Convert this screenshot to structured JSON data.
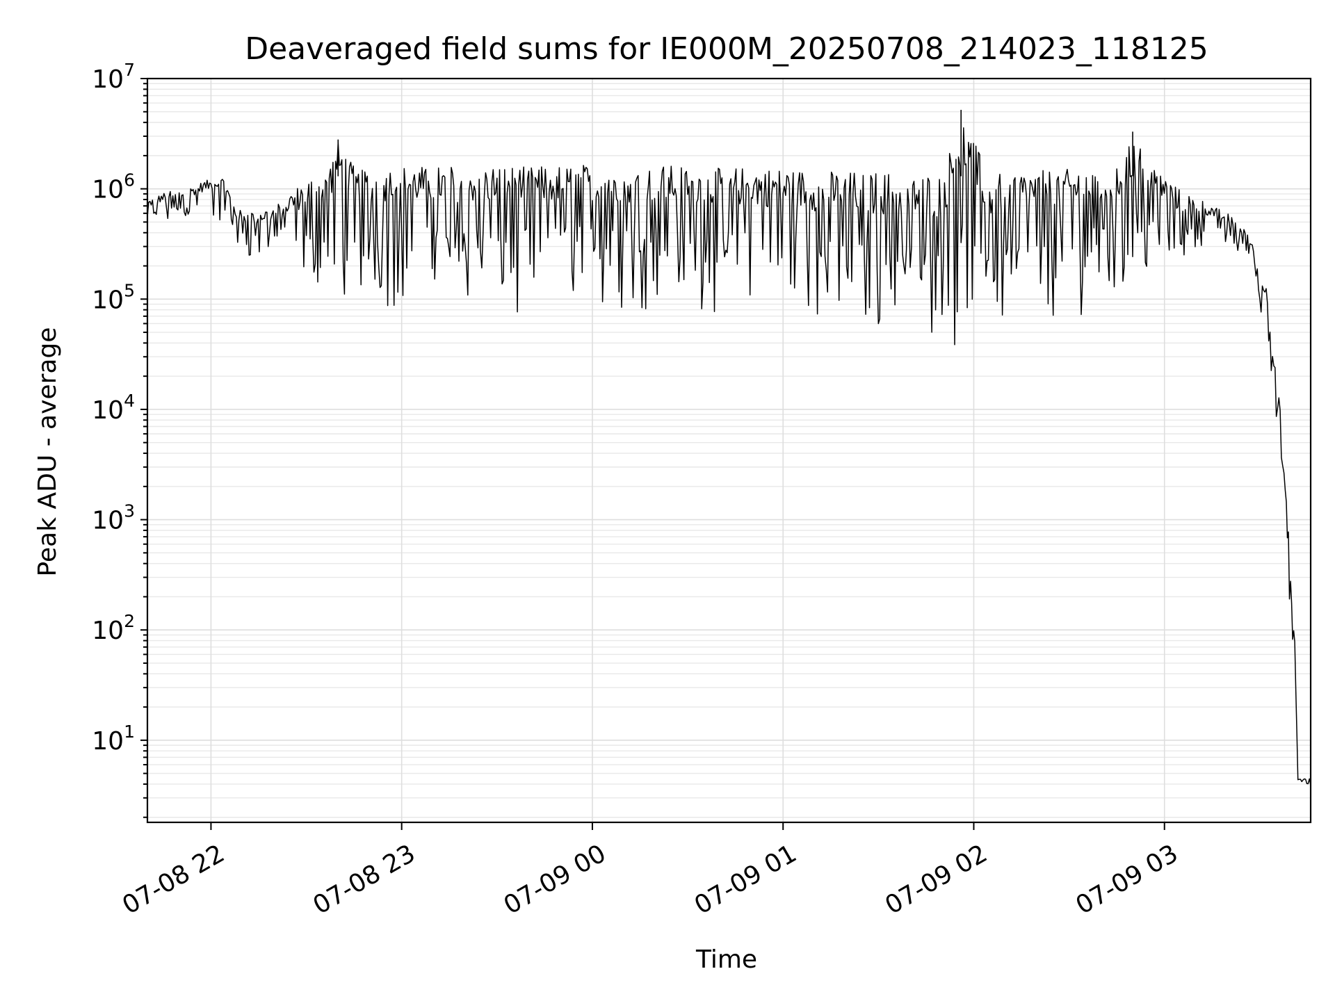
{
  "chart_data": {
    "type": "line",
    "title": "Deaveraged field sums for IE000M_20250708_214023_118125",
    "xlabel": "Time",
    "ylabel": "Peak ADU - average",
    "yscale": "log",
    "ylim": [
      1.8,
      10000000
    ],
    "xlim": [
      "07-08 21:40",
      "07-09 03:46"
    ],
    "grid": true,
    "x_ticks": [
      "07-08 22",
      "07-08 23",
      "07-09 00",
      "07-09 01",
      "07-09 02",
      "07-09 03"
    ],
    "y_ticks": [
      {
        "base": "10",
        "exp": "1"
      },
      {
        "base": "10",
        "exp": "2"
      },
      {
        "base": "10",
        "exp": "3"
      },
      {
        "base": "10",
        "exp": "4"
      },
      {
        "base": "10",
        "exp": "5"
      },
      {
        "base": "10",
        "exp": "6"
      },
      {
        "base": "10",
        "exp": "7"
      }
    ],
    "series": [
      {
        "color": "#000000",
        "x": [
          "07-08 21:40",
          "07-08 21:46",
          "07-08 21:52",
          "07-08 21:58",
          "07-08 22:04",
          "07-08 22:08",
          "07-08 22:14",
          "07-08 22:20",
          "07-08 22:26",
          "07-08 22:30",
          "07-08 22:36",
          "07-08 22:40",
          "07-08 22:46",
          "07-08 22:50",
          "07-08 22:56",
          "07-08 23:02",
          "07-08 23:10",
          "07-08 23:20",
          "07-08 23:30",
          "07-08 23:40",
          "07-08 23:50",
          "07-09 00:00",
          "07-09 00:10",
          "07-09 00:20",
          "07-09 00:30",
          "07-09 00:40",
          "07-09 00:50",
          "07-09 01:00",
          "07-09 01:10",
          "07-09 01:20",
          "07-09 01:30",
          "07-09 01:40",
          "07-09 01:50",
          "07-09 01:56",
          "07-09 02:05",
          "07-09 02:15",
          "07-09 02:25",
          "07-09 02:35",
          "07-09 02:45",
          "07-09 02:50",
          "07-09 02:58",
          "07-09 03:05",
          "07-09 03:12",
          "07-09 03:20",
          "07-09 03:25",
          "07-09 03:28",
          "07-09 03:30",
          "07-09 03:32",
          "07-09 03:34",
          "07-09 03:36",
          "07-09 03:38",
          "07-09 03:39",
          "07-09 03:40",
          "07-09 03:41",
          "07-09 03:42",
          "07-09 03:46"
        ],
        "y_high": [
          800000,
          950000,
          1000000,
          1200000,
          1300000,
          650000,
          650000,
          700000,
          1000000,
          1300000,
          1400000,
          2800000,
          1500000,
          1600000,
          1650000,
          1700000,
          1650000,
          1700000,
          1700000,
          1650000,
          1700000,
          1750000,
          1650000,
          1700000,
          1700000,
          1600000,
          1650000,
          1600000,
          1550000,
          1500000,
          1500000,
          1450000,
          1400000,
          5200000,
          1400000,
          1500000,
          1550000,
          1600000,
          1600000,
          3300000,
          1500000,
          1000000,
          800000,
          600000,
          450000,
          300000,
          160000,
          130000,
          40000,
          15000,
          2000,
          800,
          200,
          80,
          4.5,
          4.5
        ],
        "y_low": [
          400000,
          450000,
          450000,
          480000,
          500000,
          250000,
          180000,
          220000,
          150000,
          90000,
          100000,
          70000,
          70000,
          75000,
          70000,
          65000,
          70000,
          65000,
          60000,
          65000,
          70000,
          70000,
          68000,
          65000,
          62000,
          60000,
          55000,
          48000,
          42000,
          38000,
          35000,
          33000,
          30000,
          26000,
          35000,
          45000,
          55000,
          65000,
          70000,
          65000,
          150000,
          140000,
          250000,
          250000,
          230000,
          200000,
          70000,
          55000,
          12000,
          6000,
          1000,
          300,
          60,
          40,
          3.9,
          3.9
        ]
      }
    ]
  }
}
